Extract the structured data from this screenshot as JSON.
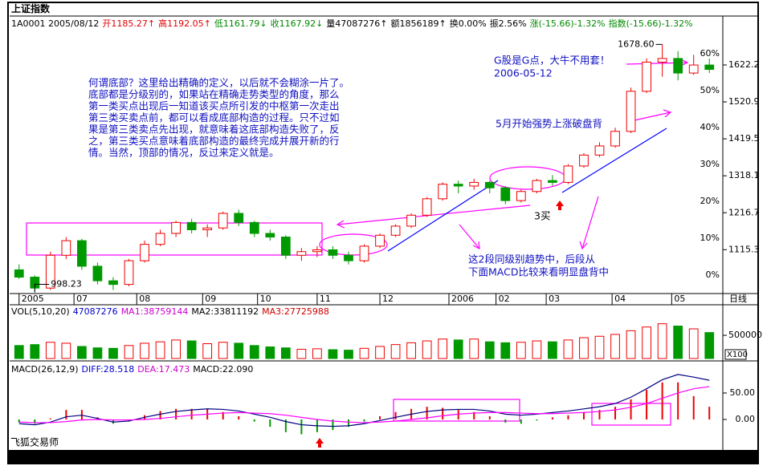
{
  "header": {
    "title": "上证指数",
    "fields": [
      {
        "text": "1A0001 2005/08/12",
        "color": "#000000"
      },
      {
        "text": "开1185.27↑",
        "color": "#e00000"
      },
      {
        "text": "高1192.05↑",
        "color": "#e00000"
      },
      {
        "text": "低1161.79↓",
        "color": "#008800"
      },
      {
        "text": "收1167.92↓",
        "color": "#008800"
      },
      {
        "text": "量47087276↑",
        "color": "#000000"
      },
      {
        "text": "额1856189↑",
        "color": "#000000"
      },
      {
        "text": "换0.00%",
        "color": "#000000"
      },
      {
        "text": "振2.56%",
        "color": "#000000"
      },
      {
        "text": "涨(-15.66)-1.32%",
        "color": "#008800"
      },
      {
        "text": "指数(-15.66)-1.32%",
        "color": "#008800"
      }
    ]
  },
  "chart_data": [
    {
      "type": "candlestick",
      "period_label": "日线",
      "up_color": "#ee0000",
      "down_color": "#009900",
      "open": [
        1060,
        1040,
        1010,
        1100,
        1140,
        1070,
        1030,
        1020,
        1085,
        1130,
        1160,
        1190,
        1170,
        1175,
        1215,
        1190,
        1160,
        1150,
        1100,
        1110,
        1115,
        1100,
        1085,
        1125,
        1155,
        1180,
        1210,
        1255,
        1295,
        1290,
        1300,
        1285,
        1250,
        1275,
        1305,
        1300,
        1345,
        1375,
        1400,
        1440,
        1550,
        1630,
        1640,
        1600,
        1622
      ],
      "high": [
        1075,
        1045,
        1110,
        1150,
        1145,
        1080,
        1040,
        1090,
        1140,
        1170,
        1195,
        1200,
        1185,
        1220,
        1225,
        1195,
        1170,
        1155,
        1120,
        1125,
        1125,
        1110,
        1130,
        1160,
        1185,
        1215,
        1260,
        1300,
        1305,
        1310,
        1305,
        1290,
        1280,
        1310,
        1320,
        1350,
        1380,
        1410,
        1450,
        1560,
        1640,
        1678.6,
        1660,
        1650,
        1640
      ],
      "low": [
        1035,
        998.23,
        1005,
        1090,
        1060,
        1020,
        1005,
        1015,
        1080,
        1125,
        1150,
        1160,
        1150,
        1170,
        1180,
        1150,
        1140,
        1090,
        1085,
        1095,
        1090,
        1075,
        1080,
        1120,
        1150,
        1175,
        1205,
        1250,
        1270,
        1280,
        1270,
        1240,
        1245,
        1270,
        1290,
        1295,
        1340,
        1370,
        1395,
        1435,
        1545,
        1590,
        1580,
        1595,
        1600
      ],
      "close": [
        1040,
        1010,
        1100,
        1140,
        1070,
        1030,
        1020,
        1085,
        1130,
        1160,
        1190,
        1170,
        1175,
        1215,
        1190,
        1160,
        1150,
        1100,
        1110,
        1115,
        1100,
        1085,
        1125,
        1155,
        1180,
        1210,
        1255,
        1295,
        1290,
        1300,
        1285,
        1250,
        1275,
        1305,
        1300,
        1345,
        1375,
        1400,
        1440,
        1550,
        1630,
        1640,
        1600,
        1622,
        1610
      ],
      "xlim": [
        -0.5,
        44.5
      ],
      "xticks": [
        {
          "value": 0,
          "label": "2005"
        },
        {
          "value": 3.5,
          "label": "07"
        },
        {
          "value": 7.5,
          "label": "08"
        },
        {
          "value": 11.7,
          "label": "09"
        },
        {
          "value": 15.2,
          "label": "10"
        },
        {
          "value": 19,
          "label": "11"
        },
        {
          "value": 23,
          "label": "12"
        },
        {
          "value": 27.4,
          "label": "2006"
        },
        {
          "value": 30.4,
          "label": "02"
        },
        {
          "value": 33.6,
          "label": "03"
        },
        {
          "value": 37.8,
          "label": "04"
        },
        {
          "value": 41.6,
          "label": "05"
        }
      ],
      "ylim": [
        995,
        1752
      ],
      "yticks": [
        1115.3,
        1216.7,
        1318.1,
        1419.5,
        1520.9,
        1622.2
      ],
      "y2lim": [
        -5,
        69.8
      ],
      "y2ticks": [
        {
          "value": 0,
          "label": "0%"
        },
        {
          "value": 10,
          "label": "10%"
        },
        {
          "value": 20,
          "label": "20%"
        },
        {
          "value": 30,
          "label": "30%"
        },
        {
          "value": 40,
          "label": "40%"
        },
        {
          "value": 50,
          "label": "50%"
        },
        {
          "value": 60,
          "label": "60%"
        }
      ],
      "extremes": [
        "1678.60",
        "998.23"
      ],
      "notes": [
        "何谓底部？这里给出精确的定义，以后就不会糊涂一片了。",
        "底部都是分级别的，如果站在精确走势类型的角度，那么",
        "第一类买点出现后一知道该买点所引发的中枢第一次走出",
        "第三类买卖点前，都可以看成底部构造的过程。只不过如",
        "果是第三类卖点先出现，就意味着这底部构造失败了，反",
        "之，第三类买点意味着底部构造的最终完成并展开新的行",
        "情。当然，顶部的情况，反过来定义就是。"
      ],
      "annotations": [
        "G股是G点，大牛不用套！",
        "2006-05-12",
        "5月开始强势上涨破盘背",
        "3买",
        "这2段同级别趋势中，后段从",
        "下面MACD比较来看明显盘背中"
      ]
    },
    {
      "type": "volume",
      "legend": [
        {
          "text": "VOL(5,10,20)",
          "color": "#000000"
        },
        {
          "text": "47087276",
          "color": "#0000cc"
        },
        {
          "text": "MA1:38759144",
          "color": "#cc00cc"
        },
        {
          "text": "MA2:33811192",
          "color": "#000000"
        },
        {
          "text": "MA3:27725988",
          "color": "#cc0000"
        }
      ],
      "unit_label": "X100",
      "values": [
        280000,
        300000,
        350000,
        330000,
        260000,
        230000,
        220000,
        280000,
        330000,
        360000,
        400000,
        380000,
        320000,
        350000,
        330000,
        280000,
        250000,
        230000,
        200000,
        210000,
        190000,
        180000,
        220000,
        260000,
        300000,
        340000,
        380000,
        420000,
        400000,
        420000,
        360000,
        340000,
        350000,
        380000,
        360000,
        400000,
        450000,
        480000,
        520000,
        600000,
        680000,
        750000,
        700000,
        640000,
        560000
      ],
      "ylim": [
        0,
        900000
      ],
      "yticks": [
        500000
      ]
    },
    {
      "type": "macd",
      "legend": [
        {
          "text": "MACD(26,12,9)",
          "color": "#000000"
        },
        {
          "text": "DIFF:28.518",
          "color": "#0000cc"
        },
        {
          "text": "DEA:17.473",
          "color": "#cc00cc"
        },
        {
          "text": "MACD:22.090",
          "color": "#000000"
        }
      ],
      "brand": "飞狐交易师",
      "diff_color": "#000080",
      "dea_color": "#ff00ff",
      "diff": [
        -8,
        -10,
        -5,
        5,
        8,
        2,
        -5,
        -3,
        4,
        10,
        15,
        18,
        20,
        19,
        16,
        10,
        4,
        -4,
        -10,
        -12,
        -13,
        -12,
        -8,
        -2,
        4,
        10,
        15,
        18,
        19,
        19,
        16,
        10,
        8,
        10,
        13,
        16,
        20,
        24,
        30,
        42,
        58,
        75,
        85,
        80,
        74
      ],
      "dea": [
        -5,
        -6,
        -6,
        -4,
        -1,
        0,
        -1,
        -1,
        0,
        2,
        5,
        8,
        10,
        12,
        13,
        12,
        11,
        8,
        4,
        0,
        -3,
        -5,
        -6,
        -5,
        -3,
        0,
        3,
        7,
        10,
        12,
        13,
        13,
        12,
        11,
        11,
        12,
        13,
        15,
        18,
        23,
        30,
        40,
        50,
        58,
        62
      ],
      "hist": [
        -6,
        -8,
        2,
        18,
        18,
        4,
        -8,
        -4,
        8,
        16,
        20,
        20,
        20,
        14,
        6,
        -4,
        -14,
        -24,
        -28,
        -24,
        -20,
        -14,
        -4,
        6,
        14,
        20,
        24,
        22,
        18,
        14,
        6,
        -6,
        -8,
        -2,
        4,
        8,
        14,
        18,
        24,
        38,
        56,
        70,
        70,
        44,
        24
      ],
      "ylim": [
        -48.5,
        83.3
      ],
      "yticks": [
        {
          "value": 0,
          "label": "0.00"
        },
        {
          "value": 50,
          "label": "50.00"
        }
      ]
    }
  ]
}
